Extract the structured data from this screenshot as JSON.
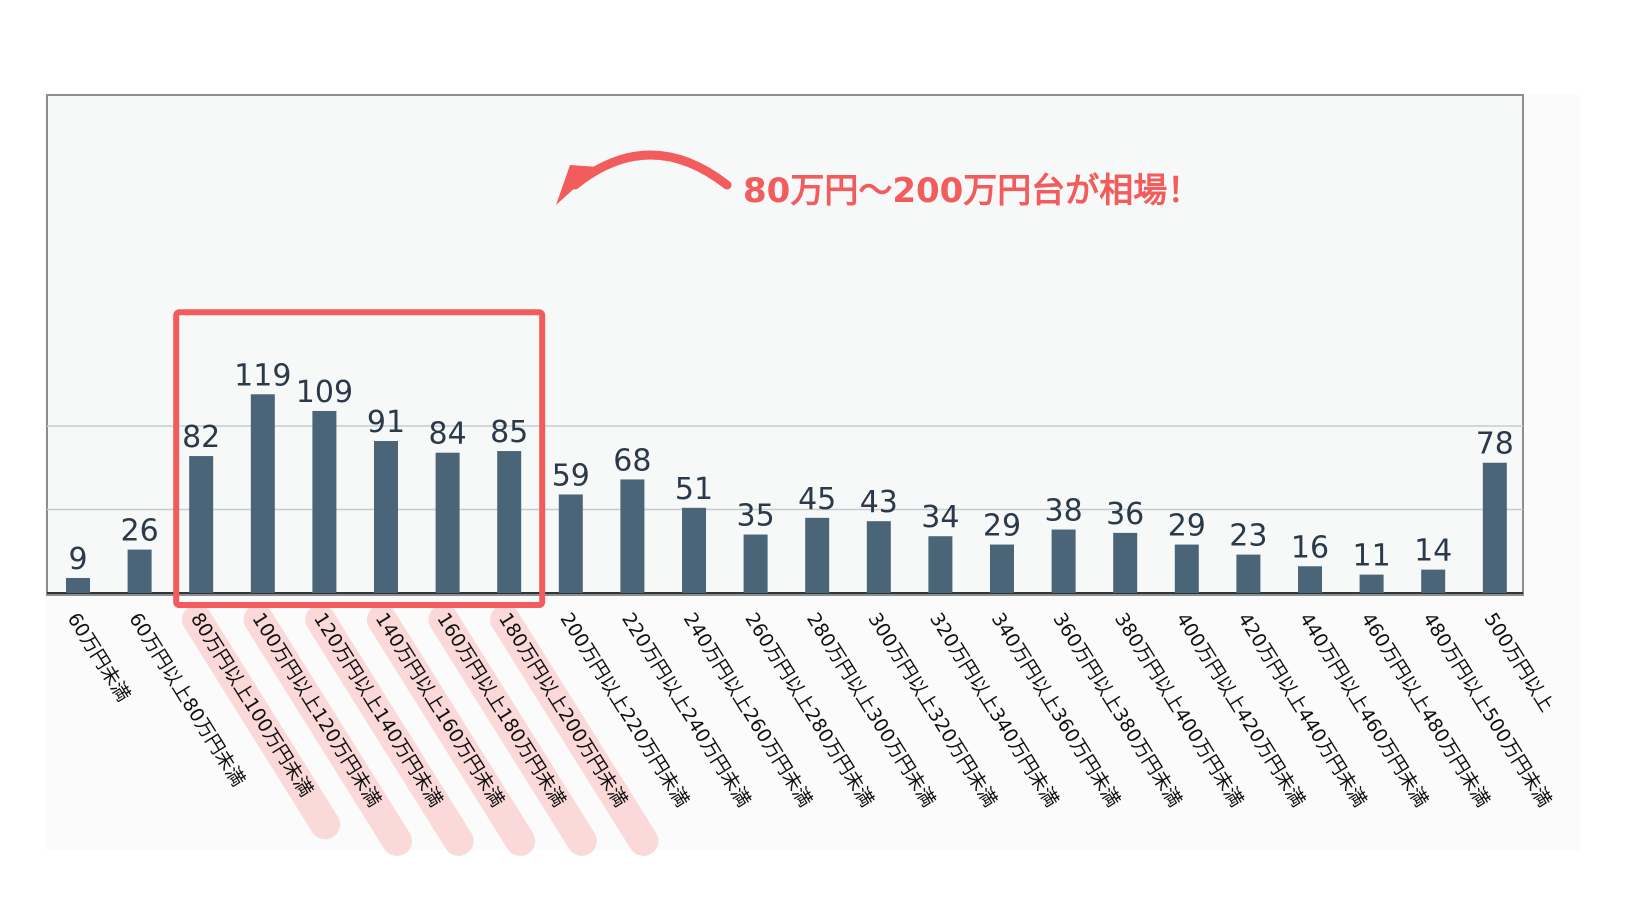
{
  "chart_data": {
    "type": "bar",
    "categories": [
      "60万円未満",
      "60万円以上80万円未満",
      "80万円以上100万円未満",
      "100万円以上120万円未満",
      "120万円以上140万円未満",
      "140万円以上160万円未満",
      "160万円以上180万円未満",
      "180万円以上200万円未満",
      "200万円以上220万円未満",
      "220万円以上240万円未満",
      "240万円以上260万円未満",
      "260万円以上280万円未満",
      "280万円以上300万円未満",
      "300万円以上320万円未満",
      "320万円以上340万円未満",
      "340万円以上360万円未満",
      "360万円以上380万円未満",
      "380万円以上400万円未満",
      "400万円以上420万円未満",
      "420万円以上440万円未満",
      "440万円以上460万円未満",
      "460万円以上480万円未満",
      "480万円以上500万円未満",
      "500万円以上"
    ],
    "values": [
      9,
      26,
      82,
      119,
      109,
      91,
      84,
      85,
      59,
      68,
      51,
      35,
      45,
      43,
      34,
      29,
      38,
      36,
      29,
      23,
      16,
      11,
      14,
      78
    ],
    "value_labels": [
      "9",
      "26",
      "82",
      "119",
      "109",
      "91",
      "84",
      "85",
      "59",
      "68",
      "51",
      "35",
      "45",
      "43",
      "34",
      "29",
      "38",
      "36",
      "29",
      "23",
      "16",
      "11",
      "14",
      "78"
    ],
    "ylim": [
      0,
      150
    ],
    "gridlines": [
      50,
      100
    ],
    "grid": true,
    "highlight_range": [
      2,
      7
    ],
    "annotation": "80万円〜200万円台が相場！"
  },
  "colors": {
    "bar": "#4a6478",
    "grid": "#c5ccd1",
    "frame": "#8a8f92",
    "highlight_box": "#f25c5c",
    "highlight_pill": "#fbd9d9",
    "annotation": "#f25c5c",
    "plot_bg": "#f7f8f8"
  }
}
